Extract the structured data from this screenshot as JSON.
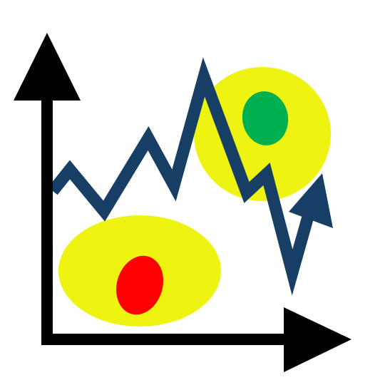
{
  "icon_name": "line-chart-trend-icon",
  "colors": {
    "background": "#ffffff",
    "axes": "#000000",
    "trend_line": "#173f66",
    "highlight": "#eef311",
    "marker_low": "#ff0000",
    "marker_high": "#00b050"
  },
  "elements": {
    "axes": "black-axes-with-arrowheads",
    "trend_line": "zigzag-line-with-arrowhead",
    "highlights": [
      "yellow-ellipse-lower-left",
      "yellow-ellipse-upper-right"
    ],
    "markers": [
      "red-oval",
      "green-oval"
    ]
  }
}
